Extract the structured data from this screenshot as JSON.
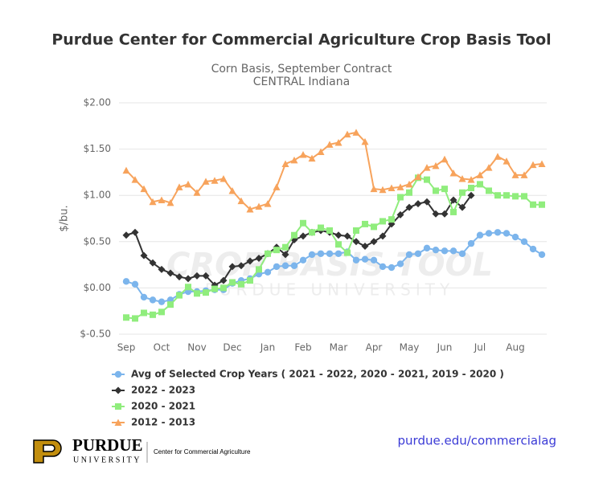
{
  "chart_data": {
    "type": "line",
    "title": "Purdue Center for Commercial Agriculture Crop Basis Tool",
    "subtitle": [
      "Corn Basis, September Contract",
      "CENTRAL Indiana"
    ],
    "y_label": "$/bu.",
    "watermark": [
      "CROP BASIS TOOL",
      "PURDUE UNIVERSITY"
    ],
    "categories": [
      "Sep",
      null,
      null,
      null,
      "Oct",
      null,
      null,
      null,
      "Nov",
      null,
      null,
      null,
      "Dec",
      null,
      null,
      null,
      "Jan",
      null,
      null,
      null,
      "Feb",
      null,
      null,
      null,
      "Mar",
      null,
      null,
      null,
      "Apr",
      null,
      null,
      null,
      "May",
      null,
      null,
      null,
      "Jun",
      null,
      null,
      null,
      "Jul",
      null,
      null,
      null,
      "Aug",
      null,
      null,
      null
    ],
    "ylim": [
      -0.5,
      2.0
    ],
    "yticks": [
      {
        "value": -0.5,
        "label": "$-0.50"
      },
      {
        "value": 0,
        "label": "$0.00"
      },
      {
        "value": 0.5,
        "label": "$0.50"
      },
      {
        "value": 1.0,
        "label": "$1.00"
      },
      {
        "value": 1.5,
        "label": "$1.50"
      },
      {
        "value": 2.0,
        "label": "$2.00"
      }
    ],
    "grid": true,
    "legend": "bottom",
    "series": [
      {
        "name": "Avg of Selected Crop Years ( 2021 - 2022, 2020 - 2021, 2019 - 2020 )",
        "color": "#7cb5ec",
        "marker": "circle",
        "values": [
          0.07,
          0.04,
          -0.1,
          -0.13,
          -0.15,
          -0.13,
          -0.07,
          -0.04,
          -0.04,
          -0.03,
          -0.02,
          -0.02,
          0.05,
          0.08,
          0.1,
          0.15,
          0.17,
          0.23,
          0.24,
          0.24,
          0.3,
          0.36,
          0.37,
          0.37,
          0.37,
          0.39,
          0.3,
          0.31,
          0.3,
          0.23,
          0.22,
          0.26,
          0.36,
          0.37,
          0.43,
          0.41,
          0.4,
          0.4,
          0.37,
          0.48,
          0.57,
          0.59,
          0.6,
          0.59,
          0.55,
          0.5,
          0.42,
          0.36
        ]
      },
      {
        "name": "2022 - 2023",
        "color": "#333333",
        "marker": "diamond",
        "values": [
          0.57,
          0.6,
          0.35,
          0.27,
          0.2,
          0.16,
          0.12,
          0.1,
          0.13,
          0.13,
          0.03,
          0.08,
          0.23,
          0.24,
          0.29,
          0.32,
          0.37,
          0.44,
          0.36,
          0.52,
          0.56,
          0.6,
          0.62,
          0.6,
          0.57,
          0.56,
          0.5,
          0.45,
          0.5,
          0.56,
          0.69,
          0.79,
          0.87,
          0.91,
          0.93,
          0.8,
          0.8,
          0.95,
          0.87,
          1.0,
          null,
          null,
          null,
          null,
          null,
          null,
          null,
          null
        ]
      },
      {
        "name": "2020 - 2021",
        "color": "#90ed7d",
        "marker": "square",
        "values": [
          -0.32,
          -0.33,
          -0.27,
          -0.29,
          -0.26,
          -0.18,
          -0.08,
          0.01,
          -0.06,
          -0.05,
          -0.01,
          0.0,
          0.06,
          0.04,
          0.08,
          0.2,
          0.37,
          0.41,
          0.44,
          0.57,
          0.7,
          0.6,
          0.65,
          0.62,
          0.47,
          0.38,
          0.62,
          0.69,
          0.66,
          0.72,
          0.74,
          0.98,
          1.03,
          1.19,
          1.17,
          1.05,
          1.07,
          0.82,
          1.03,
          1.08,
          1.12,
          1.05,
          1.0,
          1.0,
          0.99,
          0.99,
          0.9,
          0.9
        ]
      },
      {
        "name": "2012 - 2013",
        "color": "#f7a35c",
        "marker": "triangle",
        "values": [
          1.27,
          1.17,
          1.07,
          0.93,
          0.95,
          0.92,
          1.09,
          1.12,
          1.03,
          1.15,
          1.16,
          1.18,
          1.05,
          0.94,
          0.85,
          0.88,
          0.91,
          1.09,
          1.34,
          1.38,
          1.44,
          1.4,
          1.47,
          1.55,
          1.57,
          1.66,
          1.68,
          1.58,
          1.07,
          1.06,
          1.08,
          1.09,
          1.12,
          1.2,
          1.3,
          1.32,
          1.39,
          1.24,
          1.18,
          1.17,
          1.22,
          1.3,
          1.42,
          1.37,
          1.22,
          1.22,
          1.33,
          1.34
        ]
      }
    ]
  },
  "footer": {
    "logo": [
      "PURDUE",
      "UNIVERSITY"
    ],
    "unit": "Center for Commercial Agriculture",
    "link": "purdue.edu/commercialag"
  }
}
